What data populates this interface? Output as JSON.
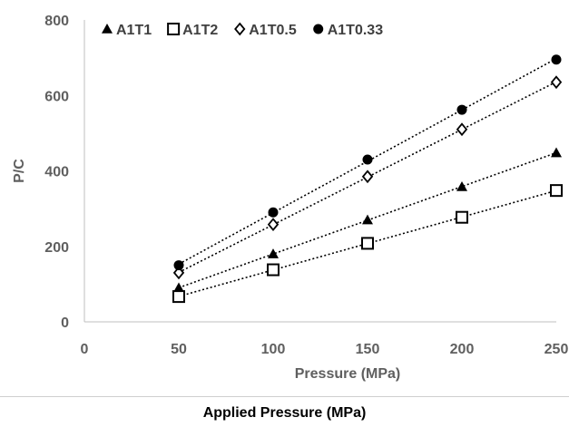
{
  "chart_data": {
    "type": "scatter",
    "x_axis": {
      "label": "Pressure (MPa)",
      "range": [
        0,
        250
      ],
      "ticks": [
        0,
        50,
        100,
        150,
        200,
        250
      ]
    },
    "y_axis": {
      "label": "P/C",
      "range": [
        0,
        800
      ],
      "ticks": [
        0,
        200,
        400,
        600,
        800
      ]
    },
    "grid": false,
    "legend_position": "top-left",
    "trendlines": "linear, dotted",
    "series": [
      {
        "name": "A1T1",
        "marker": "filled-triangle",
        "color": "#000000",
        "points": [
          [
            50,
            90
          ],
          [
            100,
            180
          ],
          [
            150,
            270
          ],
          [
            200,
            358
          ],
          [
            250,
            448
          ]
        ]
      },
      {
        "name": "A1T2",
        "marker": "open-square",
        "color": "#000000",
        "points": [
          [
            50,
            67
          ],
          [
            100,
            138
          ],
          [
            150,
            208
          ],
          [
            200,
            277
          ],
          [
            250,
            348
          ]
        ]
      },
      {
        "name": "A1T0.5",
        "marker": "open-diamond",
        "color": "#000000",
        "points": [
          [
            50,
            130
          ],
          [
            100,
            258
          ],
          [
            150,
            385
          ],
          [
            200,
            510
          ],
          [
            250,
            635
          ]
        ]
      },
      {
        "name": "A1T0.33",
        "marker": "filled-circle",
        "color": "#000000",
        "points": [
          [
            50,
            150
          ],
          [
            100,
            290
          ],
          [
            150,
            430
          ],
          [
            200,
            562
          ],
          [
            250,
            695
          ]
        ]
      }
    ]
  },
  "caption": "Applied Pressure (MPa)"
}
